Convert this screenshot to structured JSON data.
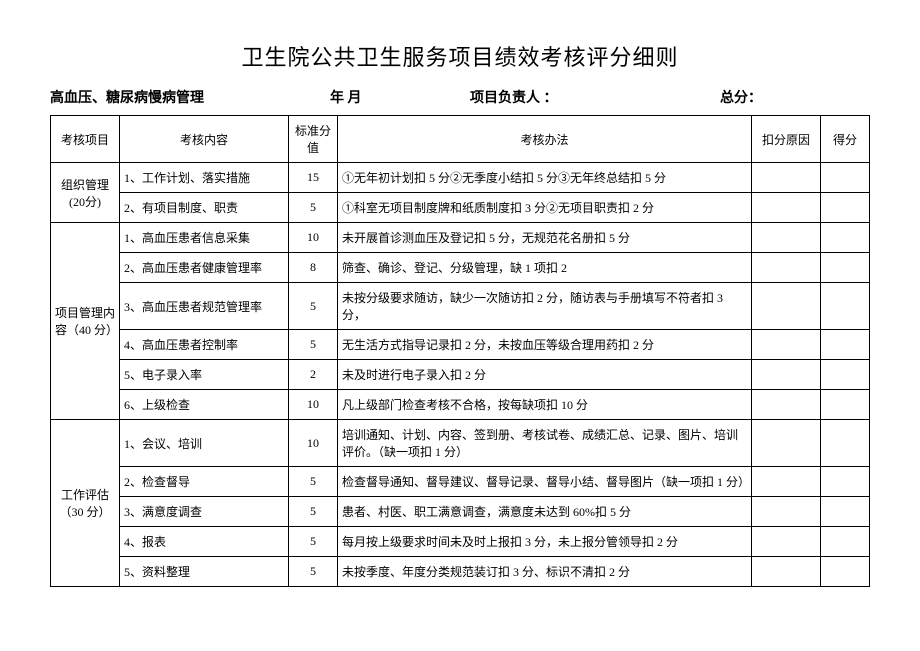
{
  "title": "卫生院公共卫生服务项目绩效考核评分细则",
  "header": {
    "subject": "高血压、糖尿病慢病管理",
    "date_label": "年    月",
    "person_label": "项目负责人 ：",
    "total_label": "总分："
  },
  "columns": {
    "category": "考核项目",
    "content": "考核内容",
    "std_score": "标准分值",
    "method": "考核办法",
    "reason": "扣分原因",
    "points": "得分"
  },
  "sections": [
    {
      "category": "组织管理(20分)",
      "rows": [
        {
          "content": "1、工作计划、落实措施",
          "score": "15",
          "method": "①无年初计划扣 5 分②无季度小结扣 5 分③无年终总结扣 5 分"
        },
        {
          "content": "2、有项目制度、职责",
          "score": "5",
          "method": "①科室无项目制度牌和纸质制度扣 3 分②无项目职责扣 2 分"
        }
      ]
    },
    {
      "category": "项目管理内容（40 分）",
      "rows": [
        {
          "content": "1、高血压患者信息采集",
          "score": "10",
          "method": "未开展首诊测血压及登记扣 5 分，无规范花名册扣 5 分"
        },
        {
          "content": "2、高血压患者健康管理率",
          "score": "8",
          "method": "筛查、确诊、登记、分级管理，缺 1 项扣 2"
        },
        {
          "content": "3、高血压患者规范管理率",
          "score": "5",
          "method": "未按分级要求随访，缺少一次随访扣 2 分，随访表与手册填写不符者扣 3 分，"
        },
        {
          "content": "4、高血压患者控制率",
          "score": "5",
          "method": "无生活方式指导记录扣 2 分，未按血压等级合理用药扣 2 分"
        },
        {
          "content": "5、电子录入率",
          "score": "2",
          "method": "未及时进行电子录入扣 2 分"
        },
        {
          "content": "6、上级检查",
          "score": "10",
          "method": "凡上级部门检查考核不合格，按每缺项扣 10 分"
        }
      ]
    },
    {
      "category": "工作评估（30 分）",
      "rows": [
        {
          "content": "1、会议、培训",
          "score": "10",
          "method": "培训通知、计划、内容、签到册、考核试卷、成绩汇总、记录、图片、培训评价。（缺一项扣 1 分）"
        },
        {
          "content": "2、检查督导",
          "score": "5",
          "method": "检查督导通知、督导建议、督导记录、督导小结、督导图片（缺一项扣 1 分）"
        },
        {
          "content": "3、满意度调查",
          "score": "5",
          "method": "患者、村医、职工满意调查，满意度未达到 60%扣 5 分"
        },
        {
          "content": "4、报表",
          "score": "5",
          "method": "每月按上级要求时间未及时上报扣 3 分，未上报分管领导扣 2 分"
        },
        {
          "content": "5、资料整理",
          "score": "5",
          "method": "未按季度、年度分类规范装订扣 3 分、标识不清扣 2 分"
        }
      ]
    }
  ]
}
